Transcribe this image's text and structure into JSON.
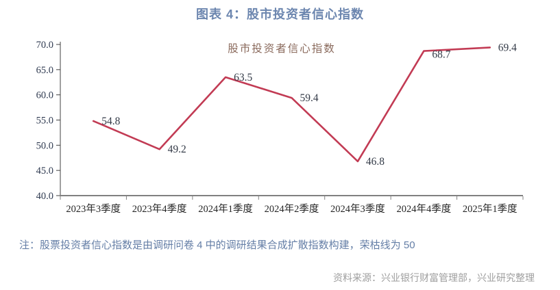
{
  "page": {
    "title": "图表 4：股市投资者信心指数",
    "note": "注：股票投资者信心指数是由调研问卷 4 中的调研结果合成扩散指数构建，荣枯线为 50",
    "source": "资料来源：兴业银行财富管理部，兴业研究整理"
  },
  "colors": {
    "title": "#6C86AF",
    "note": "#647EA6",
    "source": "#9E9E9E",
    "line": "#C23B54",
    "y_axis_label": "#2F3A50",
    "x_axis_label": "#262626",
    "data_label": "#333A47",
    "inner_title": "#8A6A5C",
    "x_axis_line": "#808080",
    "y_axis_line": "#404040"
  },
  "chart_data": {
    "type": "line",
    "title": "股市投资者信心指数",
    "categories": [
      "2023年3季度",
      "2023年4季度",
      "2024年1季度",
      "2024年2季度",
      "2024年3季度",
      "2024年4季度",
      "2025年1季度"
    ],
    "series": [
      {
        "name": "股市投资者信心指数",
        "values": [
          54.8,
          49.2,
          63.5,
          59.4,
          46.8,
          68.7,
          69.4
        ]
      }
    ],
    "data_labels": [
      "54.8",
      "49.2",
      "63.5",
      "59.4",
      "46.8",
      "68.7",
      "69.4"
    ],
    "xlabel": "",
    "ylabel": "",
    "ylim": [
      40.0,
      70.0
    ],
    "ytick_step": 5.0,
    "ytick_labels": [
      "40.0",
      "45.0",
      "50.0",
      "55.0",
      "60.0",
      "65.0",
      "70.0"
    ],
    "grid": false,
    "legend_position": "inside-top-center"
  }
}
